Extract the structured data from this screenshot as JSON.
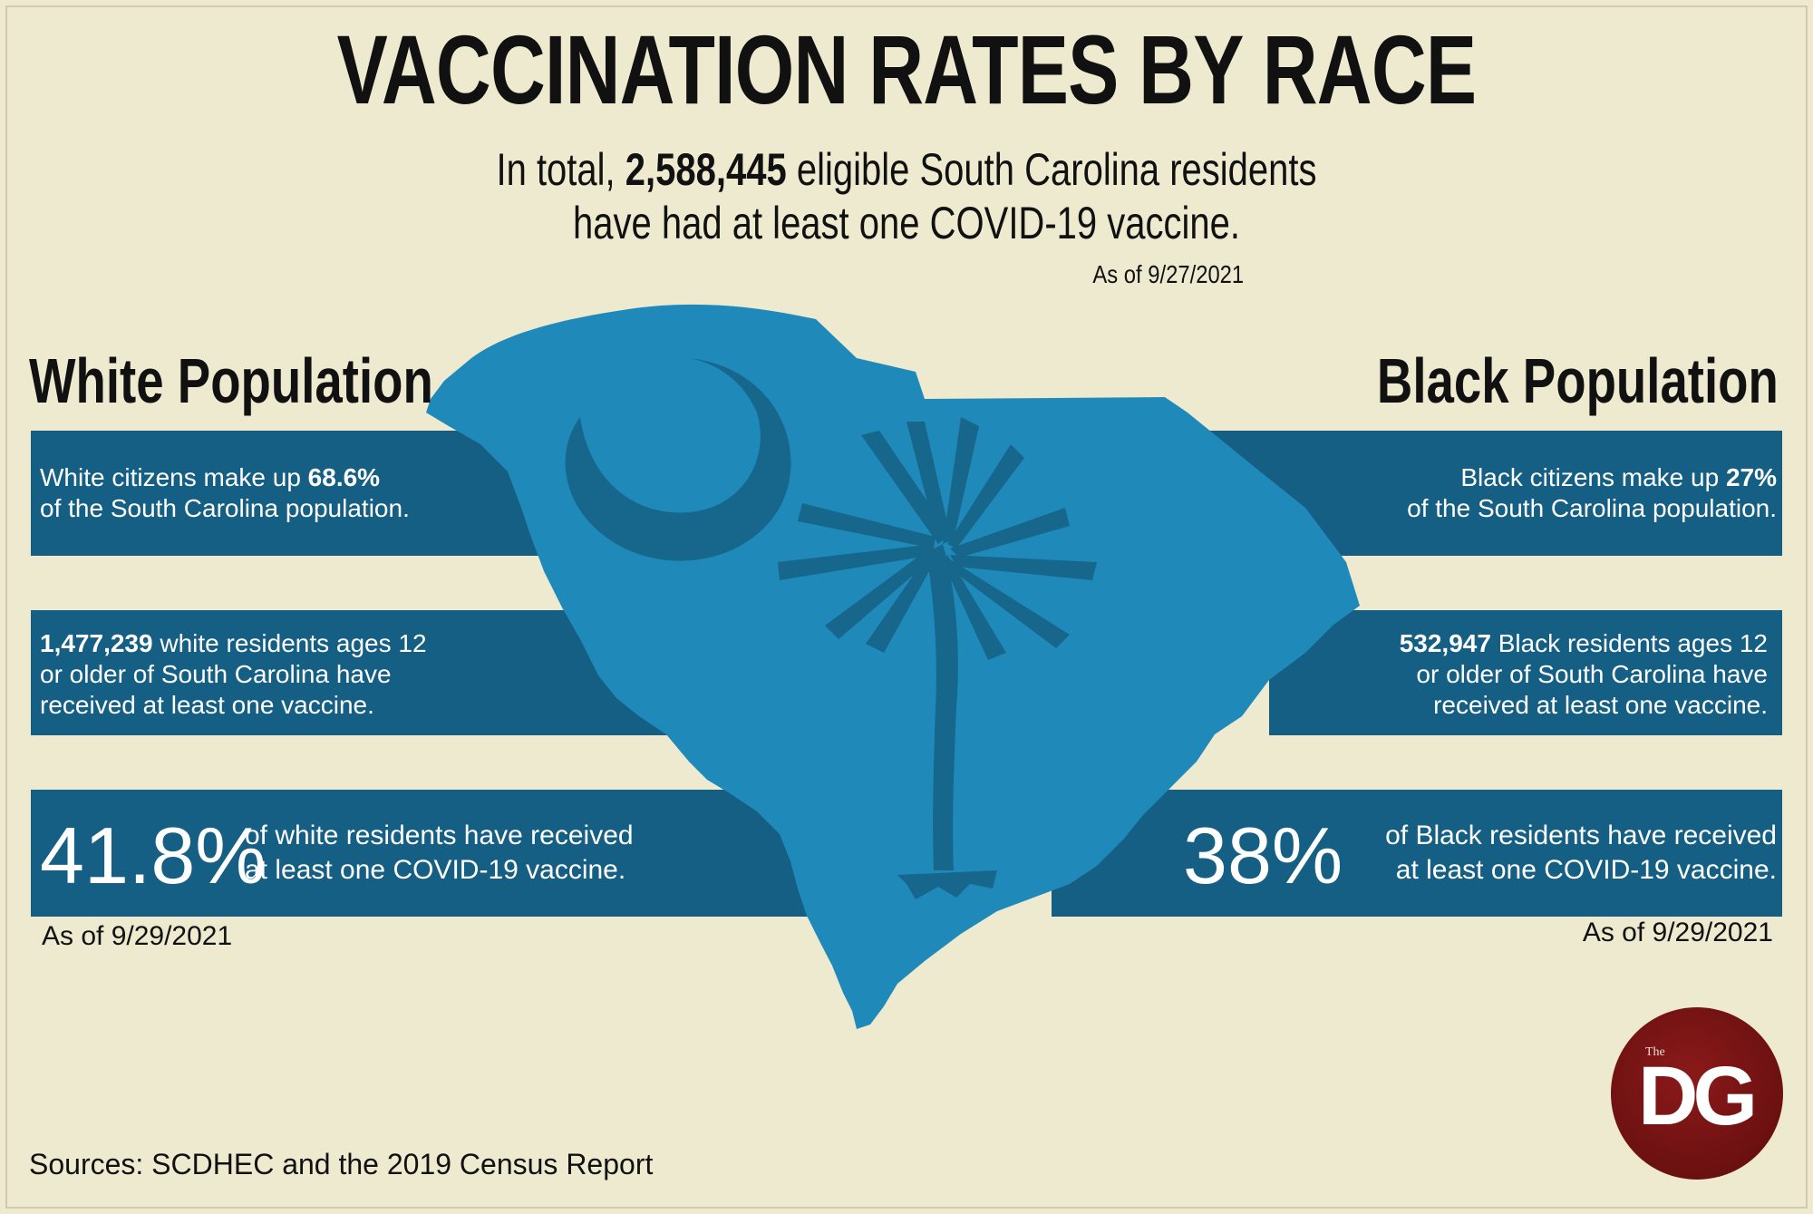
{
  "title": "VACCINATION RATES BY RACE",
  "subtitle": {
    "line1_pre": "In total, ",
    "line1_bold": "2,588,445",
    "line1_post": " eligible South Carolina residents",
    "line2": "have had at least one COVID-19 vaccine."
  },
  "top_date": "As of 9/27/2021",
  "white": {
    "heading": "White Population",
    "band1_pre": "White citizens make up ",
    "band1_bold": "68.6%",
    "band1_line2": "of the South Carolina population.",
    "band2_bold": "1,477,239",
    "band2_post": " white residents ages 12",
    "band2_line2": "or older of South Carolina have",
    "band2_line3": "received at least one vaccine.",
    "pct": "41.8%",
    "pct_line1": "of white residents have received",
    "pct_line2": "at least one COVID-19 vaccine.",
    "asof": "As of 9/29/2021"
  },
  "black": {
    "heading": "Black Population",
    "band1_pre": "Black citizens make up ",
    "band1_bold": "27%",
    "band1_line2": "of the South Carolina population.",
    "band2_bold": "532,947",
    "band2_post": " Black residents ages 12",
    "band2_line2": "or older of South Carolina have",
    "band2_line3": "received at least one vaccine.",
    "pct": "38%",
    "pct_line1": "of Black residents have received",
    "pct_line2": "at least one COVID-19 vaccine.",
    "asof": "As of 9/29/2021"
  },
  "sources": "Sources: SCDHEC and the 2019 Census Report",
  "logo": {
    "small": "The",
    "big": "DG"
  },
  "colors": {
    "background": "#eeead0",
    "band": "#145f83",
    "state": "#1f8ab9",
    "state_shadow": "#17668c",
    "logo": "#7a1414"
  },
  "icons": [
    "south-carolina-map-icon",
    "crescent-moon-icon",
    "palmetto-tree-icon"
  ]
}
